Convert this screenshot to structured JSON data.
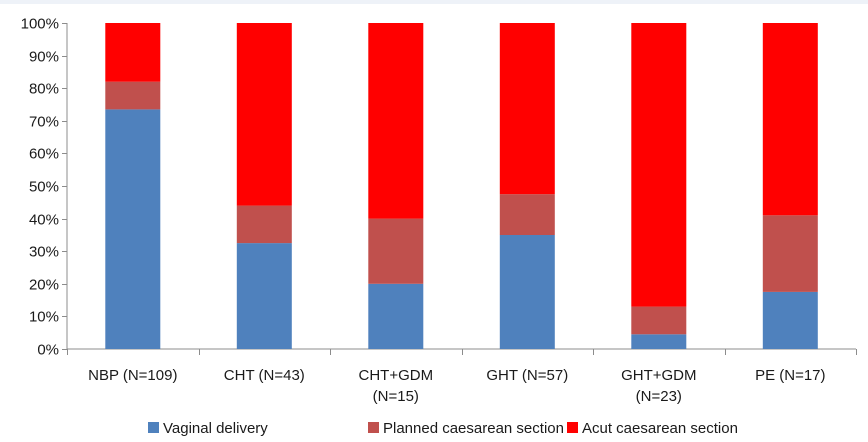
{
  "chart_data": {
    "type": "bar",
    "stacked": true,
    "percent": true,
    "categories": [
      [
        "NBP (N=109)"
      ],
      [
        "CHT (N=43)"
      ],
      [
        "CHT+GDM",
        "(N=15)"
      ],
      [
        "GHT (N=57)"
      ],
      [
        "GHT+GDM",
        "(N=23)"
      ],
      [
        "PE (N=17)"
      ]
    ],
    "series": [
      {
        "name": "Vaginal delivery",
        "color": "#4f81bd",
        "values": [
          73.5,
          32.5,
          20,
          35,
          4.5,
          17.5
        ]
      },
      {
        "name": "Planned caesarean section",
        "color": "#c0504d",
        "values": [
          8.5,
          11.5,
          20,
          12.5,
          8.5,
          23.5
        ]
      },
      {
        "name": "Acut caesarean section",
        "color": "#ff0000",
        "values": [
          18,
          56,
          60,
          52.5,
          87,
          59
        ]
      }
    ],
    "yticks": [
      "0%",
      "10%",
      "20%",
      "30%",
      "40%",
      "50%",
      "60%",
      "70%",
      "80%",
      "90%",
      "100%"
    ],
    "ylim": [
      0,
      100
    ],
    "legend_position": "bottom",
    "grid": false
  }
}
